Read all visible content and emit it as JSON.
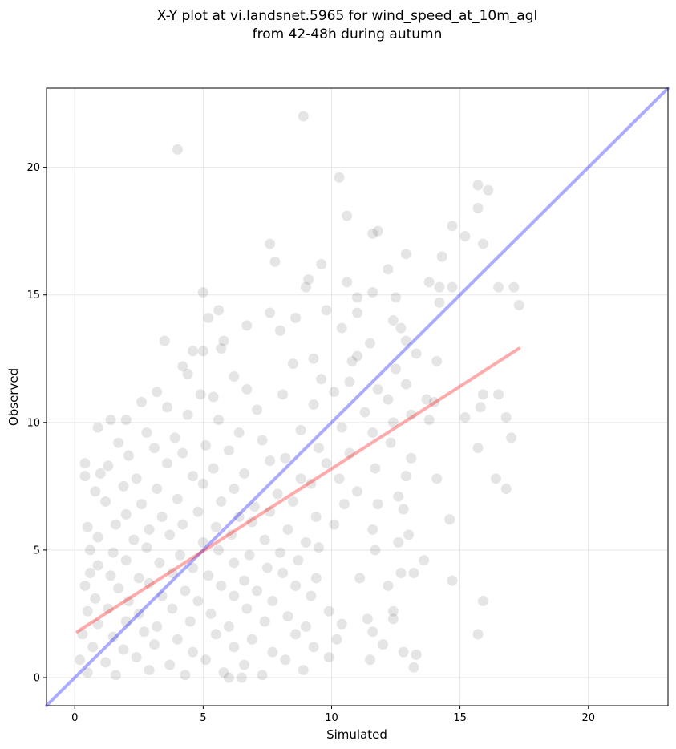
{
  "chart_data": {
    "type": "scatter",
    "title_lines": [
      "X-Y plot at vi.landsnet.5965 for wind_speed_at_10m_agl",
      "from 42-48h during autumn"
    ],
    "xlabel": "Simulated",
    "ylabel": "Observed",
    "xlim": [
      -1.1,
      23.1
    ],
    "ylim": [
      -1.1,
      23.1
    ],
    "xticks": [
      0,
      5,
      10,
      15,
      20
    ],
    "yticks": [
      0,
      5,
      10,
      15,
      20
    ],
    "grid": true,
    "colors": {
      "points": "#000000",
      "one_to_one_line": "#0000ff",
      "regression_line": "#ff0000",
      "grid": "#e6e6e6"
    },
    "point_alpha": 0.1,
    "lines": [
      {
        "role": "one-to-one",
        "x": [
          -1.1,
          23.1
        ],
        "y": [
          -1.1,
          23.1
        ]
      },
      {
        "role": "regression",
        "x": [
          0.1,
          17.3
        ],
        "y": [
          1.8,
          12.9
        ]
      }
    ],
    "points": [
      [
        8.9,
        22.0
      ],
      [
        4.0,
        20.7
      ],
      [
        10.3,
        19.6
      ],
      [
        15.7,
        19.3
      ],
      [
        16.1,
        19.1
      ],
      [
        15.7,
        18.4
      ],
      [
        10.6,
        18.1
      ],
      [
        14.7,
        17.7
      ],
      [
        11.8,
        17.5
      ],
      [
        11.6,
        17.4
      ],
      [
        15.2,
        17.3
      ],
      [
        7.6,
        17.0
      ],
      [
        15.9,
        17.0
      ],
      [
        12.9,
        16.6
      ],
      [
        14.3,
        16.5
      ],
      [
        7.8,
        16.3
      ],
      [
        9.6,
        16.2
      ],
      [
        12.2,
        16.0
      ],
      [
        9.1,
        15.6
      ],
      [
        9.0,
        15.3
      ],
      [
        10.6,
        15.5
      ],
      [
        13.8,
        15.5
      ],
      [
        14.2,
        15.3
      ],
      [
        14.7,
        15.3
      ],
      [
        16.5,
        15.3
      ],
      [
        17.1,
        15.3
      ],
      [
        5.0,
        15.1
      ],
      [
        11.6,
        15.1
      ],
      [
        11.0,
        14.9
      ],
      [
        12.5,
        14.9
      ],
      [
        17.3,
        14.6
      ],
      [
        14.2,
        14.7
      ],
      [
        5.6,
        14.4
      ],
      [
        9.8,
        14.4
      ],
      [
        7.6,
        14.3
      ],
      [
        11.0,
        14.3
      ],
      [
        5.2,
        14.1
      ],
      [
        8.6,
        14.1
      ],
      [
        12.4,
        14.0
      ],
      [
        12.7,
        13.7
      ],
      [
        6.7,
        13.8
      ],
      [
        10.4,
        13.7
      ],
      [
        3.5,
        13.2
      ],
      [
        5.8,
        13.2
      ],
      [
        8.0,
        13.6
      ],
      [
        12.9,
        13.2
      ],
      [
        11.5,
        13.1
      ],
      [
        5.7,
        12.9
      ],
      [
        4.6,
        12.8
      ],
      [
        5.0,
        12.8
      ],
      [
        9.3,
        12.5
      ],
      [
        13.3,
        12.7
      ],
      [
        10.8,
        12.4
      ],
      [
        14.1,
        12.4
      ],
      [
        4.2,
        12.2
      ],
      [
        8.5,
        12.3
      ],
      [
        11.0,
        12.6
      ],
      [
        12.5,
        12.1
      ],
      [
        4.4,
        11.9
      ],
      [
        6.2,
        11.8
      ],
      [
        9.6,
        11.7
      ],
      [
        10.7,
        11.6
      ],
      [
        12.9,
        11.5
      ],
      [
        3.2,
        11.2
      ],
      [
        5.4,
        11.0
      ],
      [
        6.7,
        11.3
      ],
      [
        8.1,
        11.1
      ],
      [
        10.1,
        11.2
      ],
      [
        11.8,
        11.3
      ],
      [
        13.7,
        10.9
      ],
      [
        4.9,
        11.1
      ],
      [
        12.2,
        10.9
      ],
      [
        15.9,
        11.1
      ],
      [
        16.5,
        11.1
      ],
      [
        2.6,
        10.8
      ],
      [
        3.6,
        10.6
      ],
      [
        7.1,
        10.5
      ],
      [
        9.3,
        10.7
      ],
      [
        11.3,
        10.4
      ],
      [
        14.0,
        10.8
      ],
      [
        15.8,
        10.6
      ],
      [
        13.1,
        10.3
      ],
      [
        1.4,
        10.1
      ],
      [
        2.0,
        10.1
      ],
      [
        4.4,
        10.3
      ],
      [
        5.6,
        10.1
      ],
      [
        15.2,
        10.2
      ],
      [
        16.8,
        10.2
      ],
      [
        12.4,
        10.0
      ],
      [
        13.8,
        10.1
      ],
      [
        0.9,
        9.8
      ],
      [
        2.8,
        9.6
      ],
      [
        3.9,
        9.4
      ],
      [
        6.4,
        9.6
      ],
      [
        8.8,
        9.7
      ],
      [
        10.4,
        9.8
      ],
      [
        11.6,
        9.6
      ],
      [
        17.0,
        9.4
      ],
      [
        1.7,
        9.2
      ],
      [
        3.1,
        9.0
      ],
      [
        5.1,
        9.1
      ],
      [
        7.3,
        9.3
      ],
      [
        9.5,
        9.0
      ],
      [
        12.3,
        9.2
      ],
      [
        15.7,
        9.0
      ],
      [
        2.1,
        8.7
      ],
      [
        4.2,
        8.8
      ],
      [
        6.0,
        8.9
      ],
      [
        8.2,
        8.6
      ],
      [
        10.7,
        8.8
      ],
      [
        13.1,
        8.6
      ],
      [
        0.4,
        8.4
      ],
      [
        1.3,
        8.3
      ],
      [
        3.6,
        8.4
      ],
      [
        5.4,
        8.2
      ],
      [
        7.6,
        8.5
      ],
      [
        9.8,
        8.4
      ],
      [
        11.7,
        8.2
      ],
      [
        0.4,
        7.9
      ],
      [
        1.0,
        8.0
      ],
      [
        2.4,
        7.8
      ],
      [
        4.6,
        7.9
      ],
      [
        6.6,
        8.0
      ],
      [
        8.8,
        7.8
      ],
      [
        10.3,
        7.8
      ],
      [
        12.9,
        7.9
      ],
      [
        14.1,
        7.8
      ],
      [
        16.4,
        7.8
      ],
      [
        0.8,
        7.3
      ],
      [
        1.9,
        7.5
      ],
      [
        3.2,
        7.4
      ],
      [
        5.0,
        7.6
      ],
      [
        6.2,
        7.4
      ],
      [
        7.9,
        7.2
      ],
      [
        9.2,
        7.6
      ],
      [
        11.0,
        7.3
      ],
      [
        12.6,
        7.1
      ],
      [
        16.8,
        7.4
      ],
      [
        1.2,
        6.9
      ],
      [
        2.6,
        6.8
      ],
      [
        4.0,
        7.0
      ],
      [
        5.7,
        6.9
      ],
      [
        7.0,
        6.7
      ],
      [
        8.5,
        6.9
      ],
      [
        10.5,
        6.8
      ],
      [
        11.8,
        6.8
      ],
      [
        2.0,
        6.4
      ],
      [
        3.4,
        6.3
      ],
      [
        4.8,
        6.5
      ],
      [
        6.4,
        6.3
      ],
      [
        7.6,
        6.5
      ],
      [
        9.4,
        6.3
      ],
      [
        12.8,
        6.6
      ],
      [
        0.5,
        5.9
      ],
      [
        1.6,
        6.0
      ],
      [
        2.9,
        5.8
      ],
      [
        4.2,
        6.0
      ],
      [
        5.5,
        5.9
      ],
      [
        6.9,
        6.1
      ],
      [
        8.3,
        5.8
      ],
      [
        10.1,
        6.0
      ],
      [
        11.6,
        5.8
      ],
      [
        13.0,
        5.6
      ],
      [
        14.6,
        6.2
      ],
      [
        0.9,
        5.5
      ],
      [
        2.3,
        5.4
      ],
      [
        3.7,
        5.6
      ],
      [
        5.0,
        5.3
      ],
      [
        6.1,
        5.6
      ],
      [
        7.4,
        5.4
      ],
      [
        9.0,
        5.3
      ],
      [
        12.6,
        5.3
      ],
      [
        0.6,
        5.0
      ],
      [
        1.5,
        4.9
      ],
      [
        2.8,
        5.1
      ],
      [
        4.1,
        4.8
      ],
      [
        5.6,
        5.0
      ],
      [
        6.8,
        4.8
      ],
      [
        8.0,
        4.9
      ],
      [
        9.5,
        5.1
      ],
      [
        11.7,
        5.0
      ],
      [
        0.9,
        4.4
      ],
      [
        2.0,
        4.6
      ],
      [
        3.3,
        4.5
      ],
      [
        4.6,
        4.3
      ],
      [
        6.2,
        4.5
      ],
      [
        7.5,
        4.3
      ],
      [
        8.7,
        4.6
      ],
      [
        13.6,
        4.6
      ],
      [
        0.6,
        4.1
      ],
      [
        1.4,
        4.0
      ],
      [
        2.5,
        3.9
      ],
      [
        3.8,
        4.1
      ],
      [
        5.2,
        4.0
      ],
      [
        6.6,
        3.8
      ],
      [
        8.1,
        4.1
      ],
      [
        9.4,
        3.9
      ],
      [
        12.7,
        4.1
      ],
      [
        13.2,
        4.1
      ],
      [
        0.4,
        3.6
      ],
      [
        1.7,
        3.5
      ],
      [
        2.9,
        3.7
      ],
      [
        4.3,
        3.4
      ],
      [
        5.7,
        3.6
      ],
      [
        7.1,
        3.4
      ],
      [
        8.6,
        3.6
      ],
      [
        11.1,
        3.9
      ],
      [
        14.7,
        3.8
      ],
      [
        0.8,
        3.1
      ],
      [
        2.1,
        3.0
      ],
      [
        3.4,
        3.2
      ],
      [
        4.8,
        3.0
      ],
      [
        6.2,
        3.2
      ],
      [
        7.7,
        3.0
      ],
      [
        9.2,
        3.2
      ],
      [
        12.2,
        3.6
      ],
      [
        15.9,
        3.0
      ],
      [
        0.5,
        2.6
      ],
      [
        1.3,
        2.7
      ],
      [
        2.5,
        2.5
      ],
      [
        3.8,
        2.7
      ],
      [
        5.3,
        2.5
      ],
      [
        6.7,
        2.7
      ],
      [
        8.3,
        2.4
      ],
      [
        9.9,
        2.6
      ],
      [
        12.4,
        2.6
      ],
      [
        0.9,
        2.1
      ],
      [
        2.0,
        2.2
      ],
      [
        3.2,
        2.0
      ],
      [
        4.5,
        2.2
      ],
      [
        6.0,
        2.0
      ],
      [
        7.4,
        2.2
      ],
      [
        9.0,
        2.0
      ],
      [
        10.4,
        2.1
      ],
      [
        11.4,
        2.3
      ],
      [
        12.4,
        2.3
      ],
      [
        0.3,
        1.7
      ],
      [
        1.5,
        1.6
      ],
      [
        2.7,
        1.8
      ],
      [
        4.0,
        1.5
      ],
      [
        5.5,
        1.7
      ],
      [
        6.9,
        1.5
      ],
      [
        8.6,
        1.7
      ],
      [
        10.2,
        1.5
      ],
      [
        11.6,
        1.8
      ],
      [
        15.7,
        1.7
      ],
      [
        0.7,
        1.2
      ],
      [
        1.9,
        1.1
      ],
      [
        3.1,
        1.3
      ],
      [
        4.6,
        1.0
      ],
      [
        6.2,
        1.2
      ],
      [
        7.7,
        1.0
      ],
      [
        9.3,
        1.2
      ],
      [
        12.0,
        1.3
      ],
      [
        0.2,
        0.7
      ],
      [
        1.2,
        0.6
      ],
      [
        2.4,
        0.8
      ],
      [
        3.7,
        0.5
      ],
      [
        5.1,
        0.7
      ],
      [
        6.6,
        0.5
      ],
      [
        8.2,
        0.7
      ],
      [
        9.9,
        0.8
      ],
      [
        11.5,
        0.7
      ],
      [
        12.8,
        1.0
      ],
      [
        13.3,
        0.9
      ],
      [
        0.5,
        0.2
      ],
      [
        1.6,
        0.1
      ],
      [
        2.9,
        0.3
      ],
      [
        4.3,
        0.1
      ],
      [
        5.8,
        0.2
      ],
      [
        7.3,
        0.1
      ],
      [
        8.9,
        0.3
      ],
      [
        13.2,
        0.4
      ],
      [
        6.0,
        0.0
      ],
      [
        6.5,
        0.0
      ]
    ]
  }
}
